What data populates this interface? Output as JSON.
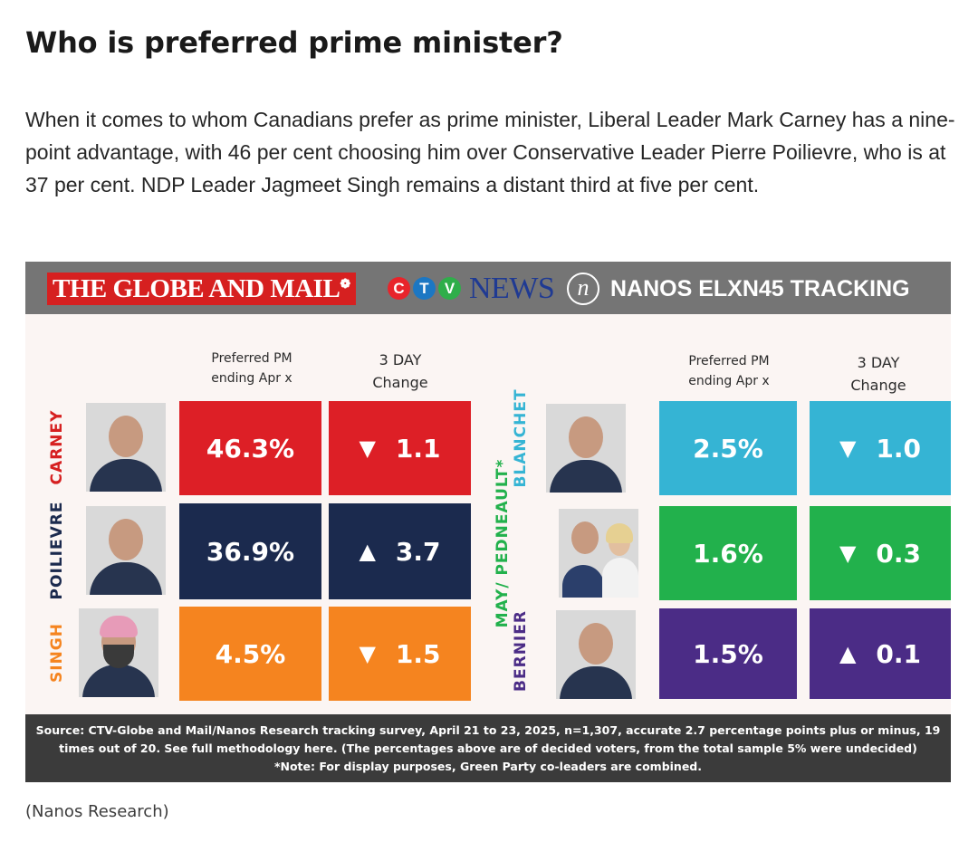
{
  "article": {
    "headline": "Who is preferred prime minister?",
    "intro": "When it comes to whom Canadians prefer as prime minister, Liberal Leader Mark Carney has a nine-point advantage, with 46 per cent choosing him over Conservative Leader Pierre Poilievre, who is at 37 per cent. NDP Leader Jagmeet Singh remains a distant third at five per cent.",
    "credit": "(Nanos Research)"
  },
  "graphic_header": {
    "globe_logo": "THE GLOBE AND MAIL",
    "ctv_letters": [
      "C",
      "T",
      "V"
    ],
    "ctv_colors": [
      "#e8242b",
      "#1c77c3",
      "#2fae4a"
    ],
    "news_logo": "NEWS",
    "nanos_mark": "n",
    "tracking_title": "NANOS ELXN45 TRACKING"
  },
  "column_headers": {
    "pm_line1": "Preferred PM",
    "pm_line2": "ending Apr x",
    "change_line1": "3 DAY",
    "change_line2": "Change"
  },
  "chart_data": {
    "type": "table",
    "columns": [
      "Preferred PM ending Apr x",
      "3 DAY Change"
    ],
    "rows": [
      {
        "label": "CARNEY",
        "value_text": "46.3%",
        "value": 46.3,
        "change_text": "1.1",
        "change": -1.1,
        "direction": "down",
        "color": "#dd1f26",
        "label_color": "#d62020",
        "icon": "person-photo"
      },
      {
        "label": "POILIEVRE",
        "value_text": "36.9%",
        "value": 36.9,
        "change_text": "3.7",
        "change": 3.7,
        "direction": "up",
        "color": "#1b2a4e",
        "label_color": "#1b2a4e",
        "icon": "person-photo"
      },
      {
        "label": "SINGH",
        "value_text": "4.5%",
        "value": 4.5,
        "change_text": "1.5",
        "change": -1.5,
        "direction": "down",
        "color": "#f5841f",
        "label_color": "#f5841f",
        "icon": "person-photo-turban"
      },
      {
        "label": "BLANCHET",
        "value_text": "2.5%",
        "value": 2.5,
        "change_text": "1.0",
        "change": -1.0,
        "direction": "down",
        "color": "#35b4d4",
        "label_color": "#35b4d4",
        "icon": "person-photo"
      },
      {
        "label": "MAY/ PEDNEAULT*",
        "value_text": "1.6%",
        "value": 1.6,
        "change_text": "0.3",
        "change": -0.3,
        "direction": "down",
        "color": "#22b14c",
        "label_color": "#22b14c",
        "icon": "two-people-photo"
      },
      {
        "label": "BERNIER",
        "value_text": "1.5%",
        "value": 1.5,
        "change_text": "0.1",
        "change": 0.1,
        "direction": "up",
        "color": "#4b2c86",
        "label_color": "#4b2c86",
        "icon": "person-photo"
      }
    ],
    "arrows": {
      "down": "▼",
      "up": "▲"
    }
  },
  "source_note": {
    "line1": "Source: CTV-Globe and Mail/Nanos Research tracking survey, April 21 to 23,  2025, n=1,307, accurate 2.7 percentage points plus or minus, 19",
    "line2": "times out of 20. See full methodology here. (The percentages above are of decided voters, from the total sample 5% were undecided)",
    "line3": "*Note: For display purposes, Green Party co-leaders are combined."
  }
}
